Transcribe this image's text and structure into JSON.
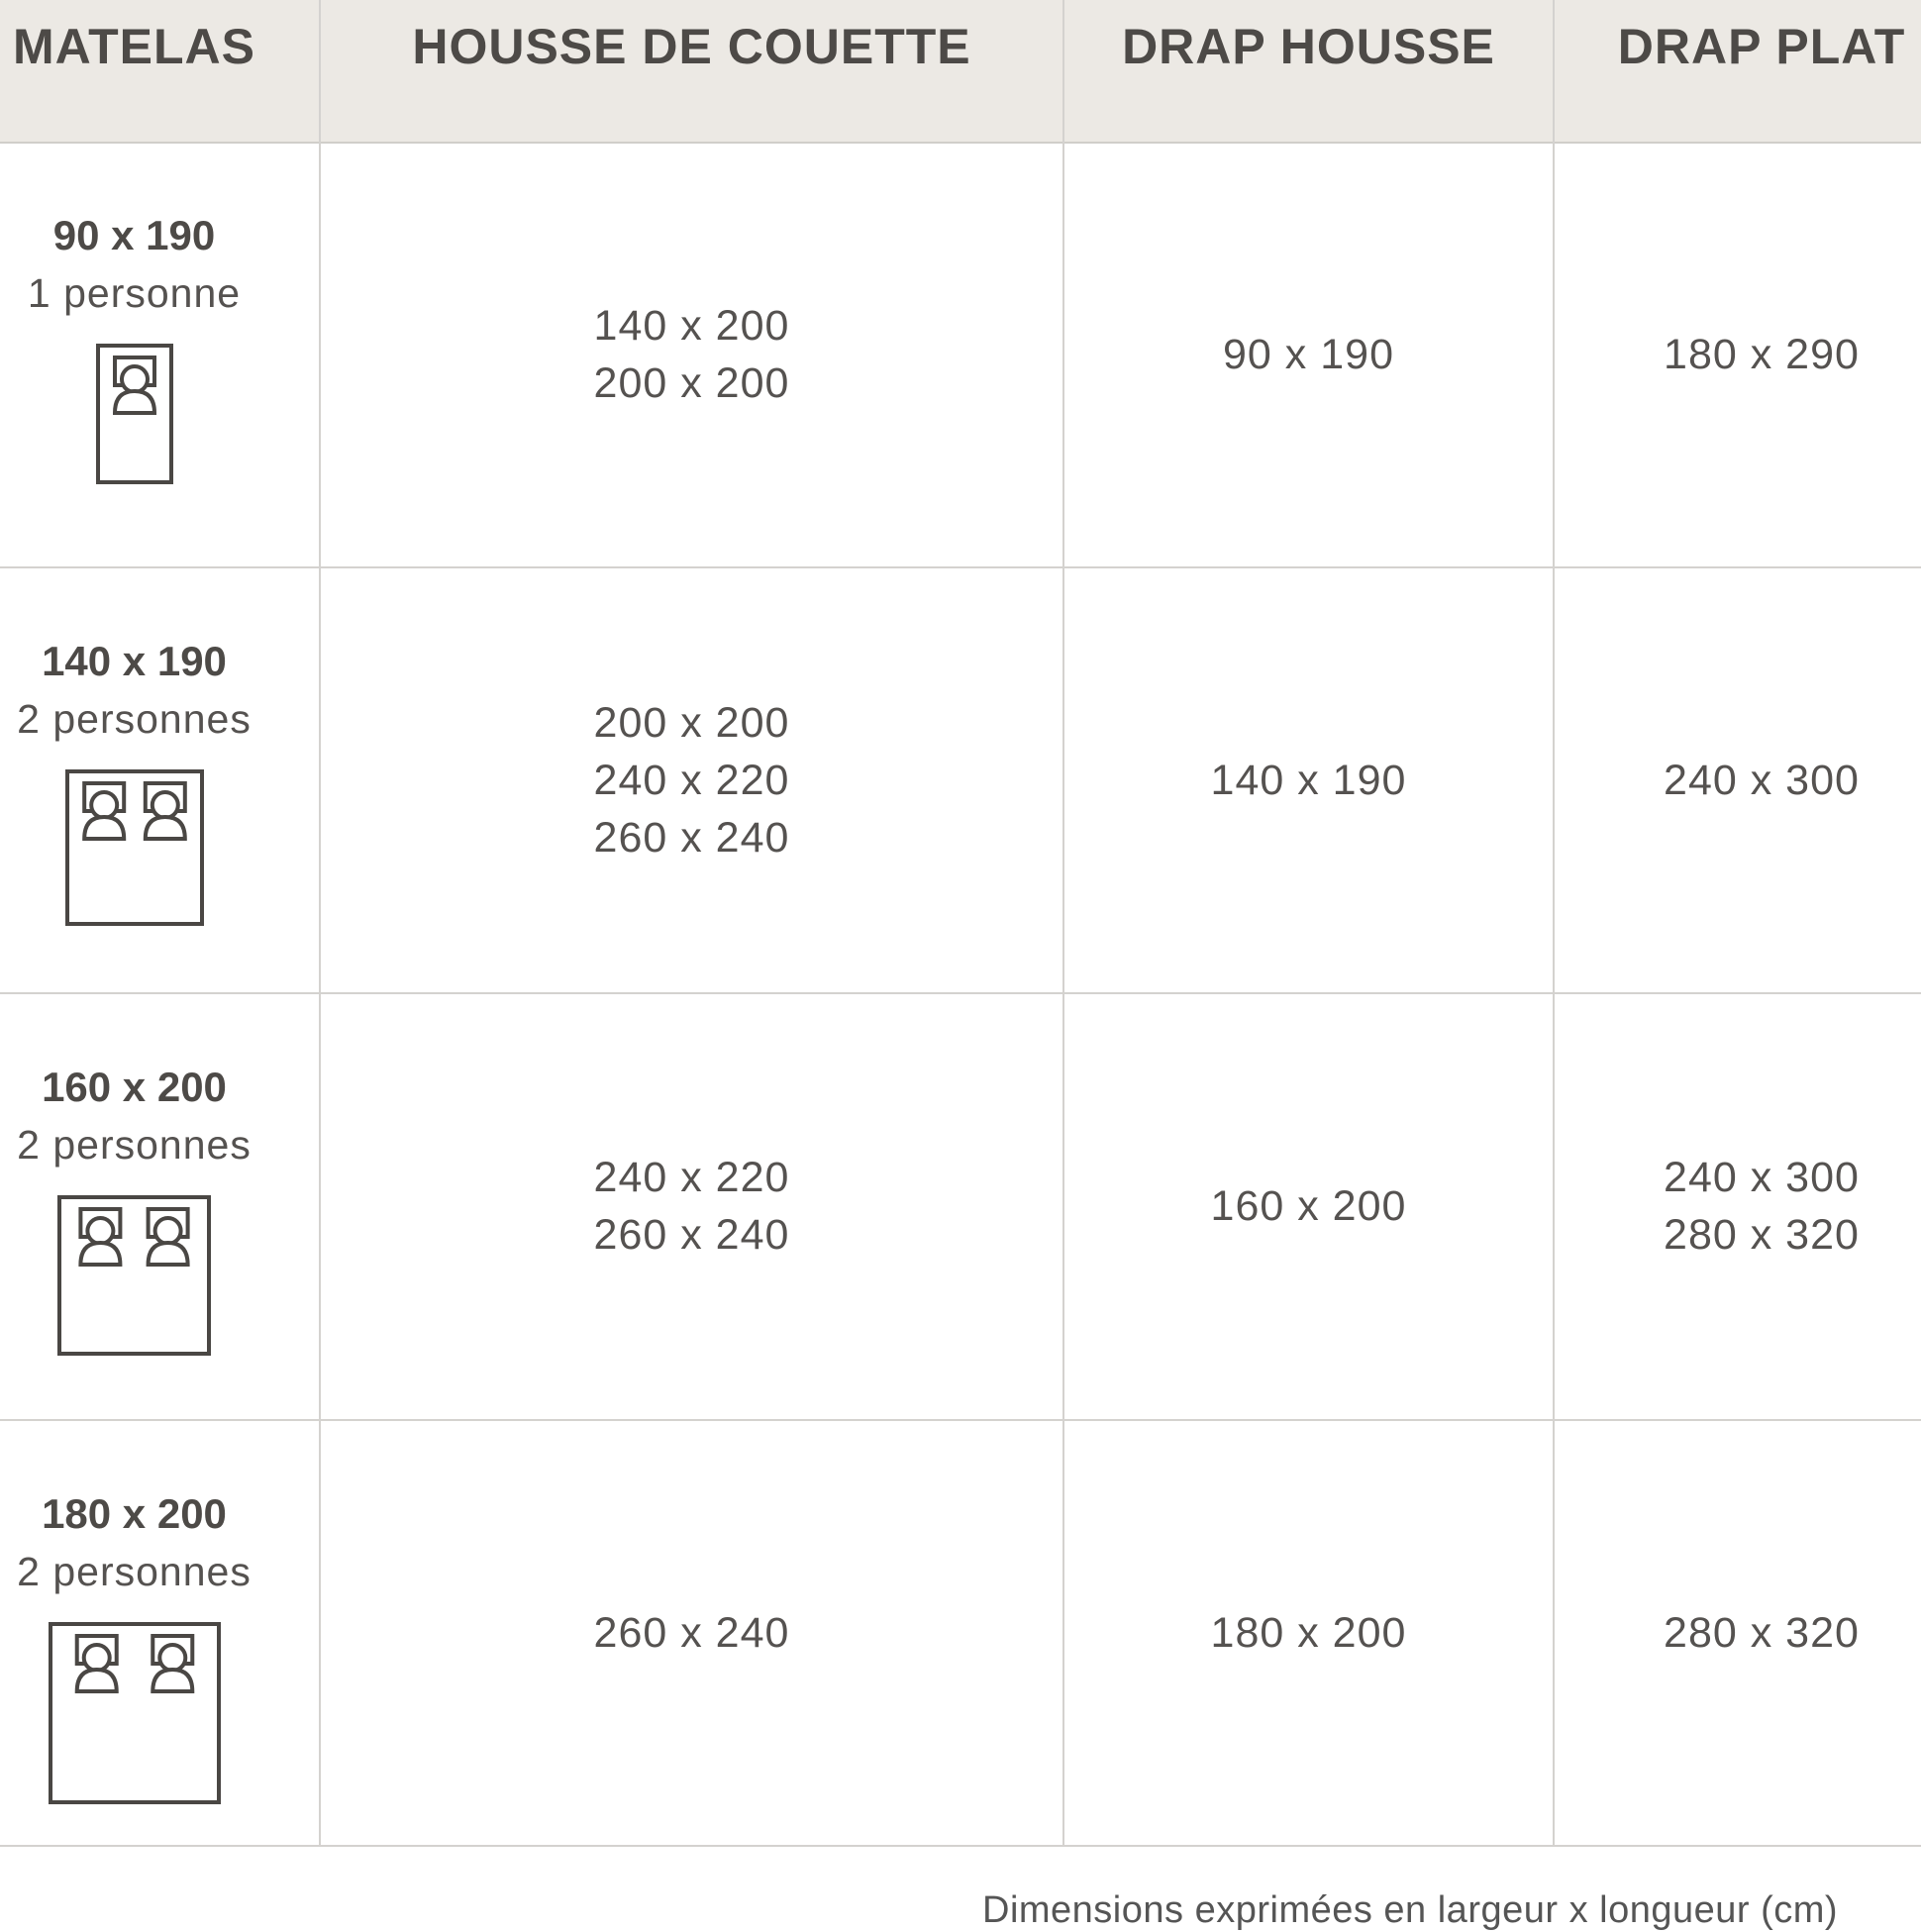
{
  "headers": [
    "MATELAS",
    "HOUSSE DE COUETTE",
    "DRAP HOUSSE",
    "DRAP PLAT"
  ],
  "rows": [
    {
      "mattress": "90 x 190",
      "people": "1 personne",
      "sleepers": 1,
      "duvet": [
        "140 x 200",
        "200 x 200"
      ],
      "fitted": [
        "90 x 190"
      ],
      "flat": [
        "180 x 290"
      ]
    },
    {
      "mattress": "140 x 190",
      "people": "2 personnes",
      "sleepers": 2,
      "duvet": [
        "200 x 200",
        "240 x 220",
        "260 x 240"
      ],
      "fitted": [
        "140 x 190"
      ],
      "flat": [
        "240 x 300"
      ]
    },
    {
      "mattress": "160 x 200",
      "people": "2 personnes",
      "sleepers": 2,
      "duvet": [
        "240 x 220",
        "260 x 240"
      ],
      "fitted": [
        "160 x 200"
      ],
      "flat": [
        "240 x 300",
        "280 x 320"
      ]
    },
    {
      "mattress": "180 x 200",
      "people": "2 personnes",
      "sleepers": 2,
      "duvet": [
        "260 x 240"
      ],
      "fitted": [
        "180 x 200"
      ],
      "flat": [
        "280 x 320"
      ]
    }
  ],
  "footer": "Dimensions exprimées en largeur x longueur (cm)"
}
